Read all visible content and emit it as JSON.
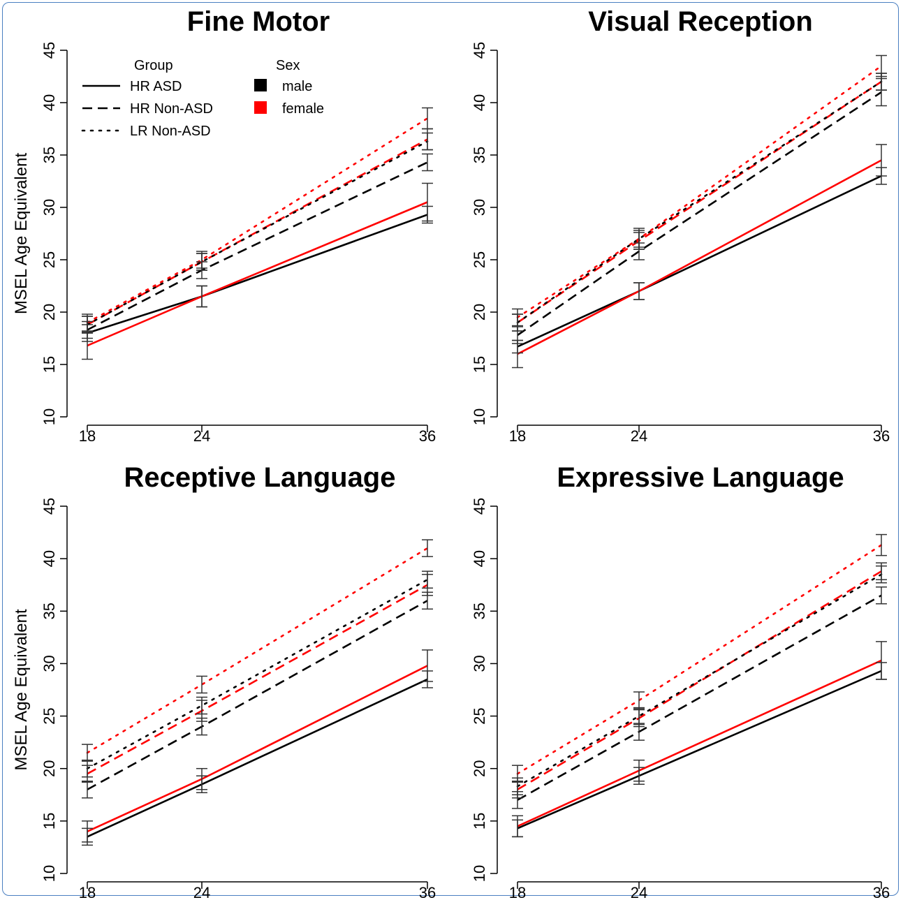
{
  "chart_data": {
    "type": "line",
    "ylabel": "MSEL Age Equivalent",
    "x": [
      18,
      24,
      36
    ],
    "ylim": [
      10,
      45
    ],
    "yticks": [
      10,
      15,
      20,
      25,
      30,
      35,
      40,
      45
    ],
    "legend": {
      "group_title": "Group",
      "sex_title": "Sex",
      "groups": [
        {
          "label": "HR ASD",
          "style": "solid"
        },
        {
          "label": "HR Non-ASD",
          "style": "dashed"
        },
        {
          "label": "LR Non-ASD",
          "style": "dotted"
        }
      ],
      "sexes": [
        {
          "label": "male",
          "color": "#000000"
        },
        {
          "label": "female",
          "color": "#ff0000"
        }
      ]
    },
    "panels": [
      {
        "title": "Fine Motor",
        "series": [
          {
            "group": "HR ASD",
            "sex": "male",
            "values": [
              18.0,
              21.5,
              29.3
            ],
            "err": [
              0.8,
              1.0,
              0.8
            ]
          },
          {
            "group": "HR ASD",
            "sex": "female",
            "values": [
              16.8,
              21.5,
              30.5
            ],
            "err": [
              1.3,
              1.0,
              1.8
            ]
          },
          {
            "group": "HR Non-ASD",
            "sex": "male",
            "values": [
              18.3,
              24.0,
              34.3
            ],
            "err": [
              0.8,
              0.8,
              0.8
            ]
          },
          {
            "group": "HR Non-ASD",
            "sex": "female",
            "values": [
              18.8,
              24.8,
              36.5
            ],
            "err": [
              0.8,
              0.8,
              1.0
            ]
          },
          {
            "group": "LR Non-ASD",
            "sex": "male",
            "values": [
              18.8,
              24.8,
              36.3
            ],
            "err": [
              0.8,
              0.8,
              0.8
            ]
          },
          {
            "group": "LR Non-ASD",
            "sex": "female",
            "values": [
              19.0,
              25.0,
              38.5
            ],
            "err": [
              0.8,
              0.8,
              1.0
            ]
          }
        ]
      },
      {
        "title": "Visual Reception",
        "series": [
          {
            "group": "HR ASD",
            "sex": "male",
            "values": [
              16.7,
              22.0,
              33.0
            ],
            "err": [
              0.6,
              0.8,
              0.8
            ]
          },
          {
            "group": "HR ASD",
            "sex": "female",
            "values": [
              16.0,
              22.0,
              34.5
            ],
            "err": [
              1.3,
              0.8,
              1.5
            ]
          },
          {
            "group": "HR Non-ASD",
            "sex": "male",
            "values": [
              17.8,
              25.8,
              41.0
            ],
            "err": [
              0.8,
              0.8,
              1.3
            ]
          },
          {
            "group": "HR Non-ASD",
            "sex": "female",
            "values": [
              19.0,
              26.8,
              42.0
            ],
            "err": [
              0.8,
              0.8,
              0.8
            ]
          },
          {
            "group": "LR Non-ASD",
            "sex": "male",
            "values": [
              19.0,
              27.0,
              42.0
            ],
            "err": [
              0.8,
              0.8,
              0.8
            ]
          },
          {
            "group": "LR Non-ASD",
            "sex": "female",
            "values": [
              19.5,
              27.0,
              43.5
            ],
            "err": [
              0.8,
              1.0,
              1.0
            ]
          }
        ]
      },
      {
        "title": "Receptive Language",
        "series": [
          {
            "group": "HR ASD",
            "sex": "male",
            "values": [
              13.5,
              18.5,
              28.5
            ],
            "err": [
              0.8,
              0.8,
              0.8
            ]
          },
          {
            "group": "HR ASD",
            "sex": "female",
            "values": [
              14.0,
              19.0,
              29.8
            ],
            "err": [
              1.0,
              1.0,
              1.5
            ]
          },
          {
            "group": "HR Non-ASD",
            "sex": "male",
            "values": [
              18.0,
              24.0,
              36.0
            ],
            "err": [
              0.8,
              0.8,
              0.8
            ]
          },
          {
            "group": "HR Non-ASD",
            "sex": "female",
            "values": [
              19.5,
              25.5,
              37.5
            ],
            "err": [
              0.8,
              1.0,
              1.0
            ]
          },
          {
            "group": "LR Non-ASD",
            "sex": "male",
            "values": [
              20.0,
              26.0,
              38.0
            ],
            "err": [
              0.8,
              0.8,
              0.8
            ]
          },
          {
            "group": "LR Non-ASD",
            "sex": "female",
            "values": [
              21.5,
              28.0,
              41.0
            ],
            "err": [
              0.8,
              0.8,
              0.8
            ]
          }
        ]
      },
      {
        "title": "Expressive Language",
        "series": [
          {
            "group": "HR ASD",
            "sex": "male",
            "values": [
              14.3,
              19.3,
              29.3
            ],
            "err": [
              0.8,
              0.8,
              0.8
            ]
          },
          {
            "group": "HR ASD",
            "sex": "female",
            "values": [
              14.5,
              19.8,
              30.3
            ],
            "err": [
              1.0,
              1.0,
              1.8
            ]
          },
          {
            "group": "HR Non-ASD",
            "sex": "male",
            "values": [
              17.0,
              23.5,
              36.5
            ],
            "err": [
              0.8,
              0.8,
              0.8
            ]
          },
          {
            "group": "HR Non-ASD",
            "sex": "female",
            "values": [
              18.0,
              24.8,
              38.8
            ],
            "err": [
              0.8,
              0.8,
              0.8
            ]
          },
          {
            "group": "LR Non-ASD",
            "sex": "male",
            "values": [
              18.3,
              25.0,
              38.5
            ],
            "err": [
              0.8,
              0.8,
              0.8
            ]
          },
          {
            "group": "LR Non-ASD",
            "sex": "female",
            "values": [
              19.5,
              26.5,
              41.3
            ],
            "err": [
              0.8,
              0.8,
              1.0
            ]
          }
        ]
      }
    ]
  }
}
